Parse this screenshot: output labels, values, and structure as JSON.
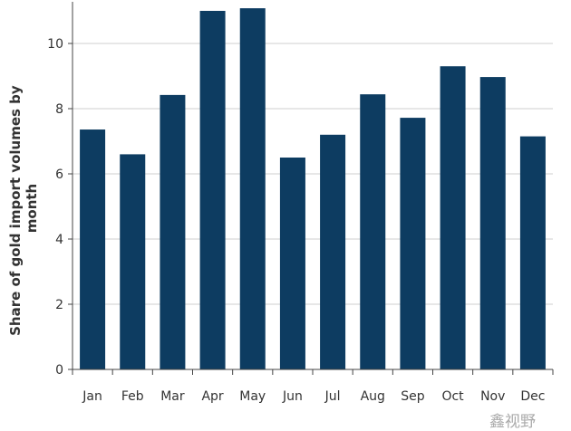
{
  "chart_data": {
    "type": "bar",
    "categories": [
      "Jan",
      "Feb",
      "Mar",
      "Apr",
      "May",
      "Jun",
      "Jul",
      "Aug",
      "Sep",
      "Oct",
      "Nov",
      "Dec"
    ],
    "values": [
      7.36,
      6.6,
      8.42,
      11.0,
      11.08,
      6.5,
      7.2,
      8.44,
      7.72,
      9.3,
      8.97,
      7.15
    ],
    "title": "",
    "xlabel": "",
    "ylabel": "Share of gold import volumes by month",
    "ylabel_lines": [
      "Share of gold import volumes by",
      "month"
    ],
    "ylim": [
      0,
      11.2
    ],
    "yticks": [
      0,
      2,
      4,
      6,
      8,
      10
    ],
    "grid": true,
    "bar_color": "#0d3c61"
  },
  "watermark": "鑫视野"
}
